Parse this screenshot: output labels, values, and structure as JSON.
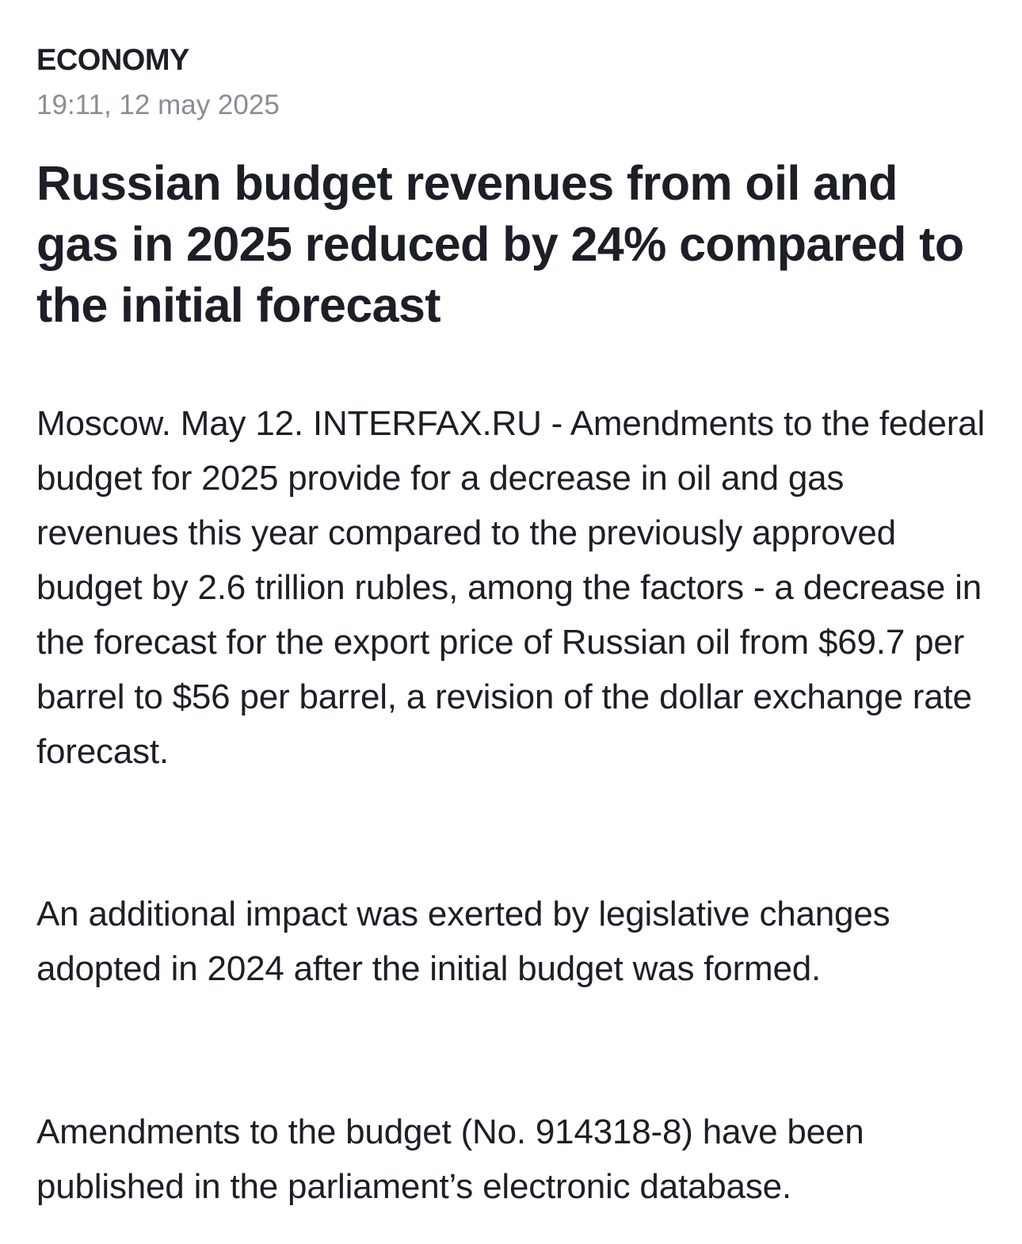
{
  "article": {
    "category": "ECONOMY",
    "timestamp": "19:11, 12 may 2025",
    "headline": "Russian budget revenues from oil and gas in 2025 reduced by 24% compared to the initial forecast",
    "paragraphs": [
      "Moscow. May 12. INTERFAX.RU - Amendments to the federal budget for 2025 provide for a decrease in oil and gas revenues this year compared to the previously approved budget by 2.6 trillion rubles, among the factors - a decrease in the forecast for the export price of Russian oil from $69.7 per barrel to $56 per barrel, a revision of the dollar exchange rate forecast.",
      "An additional impact was exerted by legislative changes adopted in 2024 after the initial budget was formed.",
      "Amendments to the budget (No. 914318-8) have been published in the parliament’s electronic database."
    ]
  }
}
